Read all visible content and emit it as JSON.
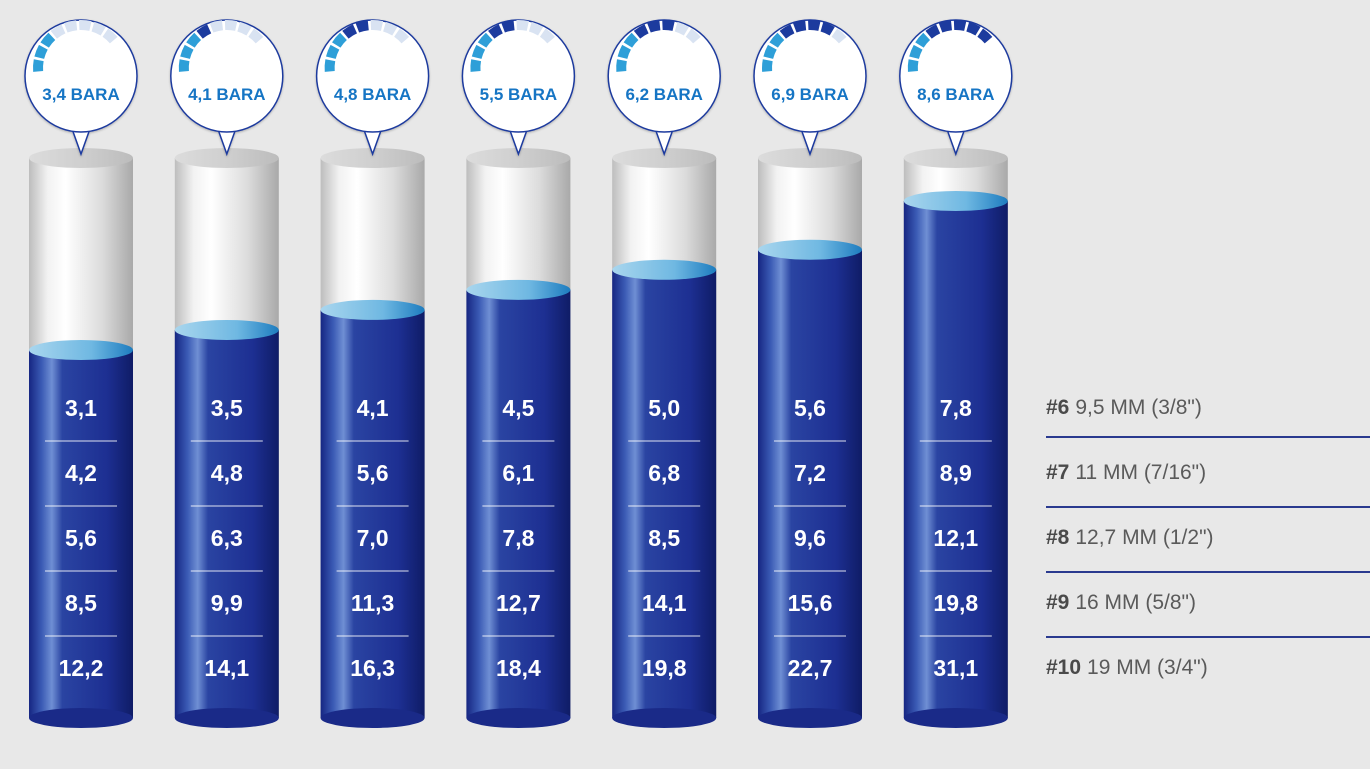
{
  "chart_data": {
    "type": "bar",
    "categories": [
      "3,4 BARA",
      "4,1 BARA",
      "4,8 BARA",
      "5,5 BARA",
      "6,2 BARA",
      "6,9 BARA",
      "8,6 BARA"
    ],
    "series": [
      {
        "name": "#6 9,5 MM (3/8\")",
        "values": [
          "3,1",
          "3,5",
          "4,1",
          "4,5",
          "5,0",
          "5,6",
          "7,8"
        ]
      },
      {
        "name": "#7 11 MM (7/16\")",
        "values": [
          "4,2",
          "4,8",
          "5,6",
          "6,1",
          "6,8",
          "7,2",
          "8,9"
        ]
      },
      {
        "name": "#8 12,7 MM (1/2\")",
        "values": [
          "5,6",
          "6,3",
          "7,0",
          "7,8",
          "8,5",
          "9,6",
          "12,1"
        ]
      },
      {
        "name": "#9 16 MM (5/8\")",
        "values": [
          "8,5",
          "9,9",
          "11,3",
          "12,7",
          "14,1",
          "15,6",
          "19,8"
        ]
      },
      {
        "name": "#10 19 MM (3/4\")",
        "values": [
          "12,2",
          "14,1",
          "16,3",
          "18,4",
          "19,8",
          "22,7",
          "31,1"
        ]
      }
    ],
    "pressure_bar": [
      3.4,
      4.1,
      4.8,
      5.5,
      6.2,
      6.9,
      8.6
    ],
    "pressure_range": [
      3.4,
      8.6
    ],
    "gauge_levels": [
      3,
      4,
      5,
      5,
      6,
      7,
      8
    ],
    "title": "",
    "xlabel": "",
    "ylabel": ""
  },
  "sizes": [
    {
      "num": "#6",
      "desc": "9,5 MM (3/8\")"
    },
    {
      "num": "#7",
      "desc": "11 MM (7/16\")"
    },
    {
      "num": "#8",
      "desc": "12,7 MM (1/2\")"
    },
    {
      "num": "#9",
      "desc": "16 MM (5/8\")"
    },
    {
      "num": "#10",
      "desc": "19 MM (3/4\")"
    }
  ],
  "colors": {
    "background": "#e8e8e8",
    "liquid_dark": "#14247a",
    "liquid_mid": "#2f4aa8",
    "liquid_top": "#7fc2e8",
    "glass": "#d8d8d8",
    "gauge_active": "#1f3a9e",
    "gauge_light": "#2f9fd8",
    "label_blue": "#1575c4"
  }
}
